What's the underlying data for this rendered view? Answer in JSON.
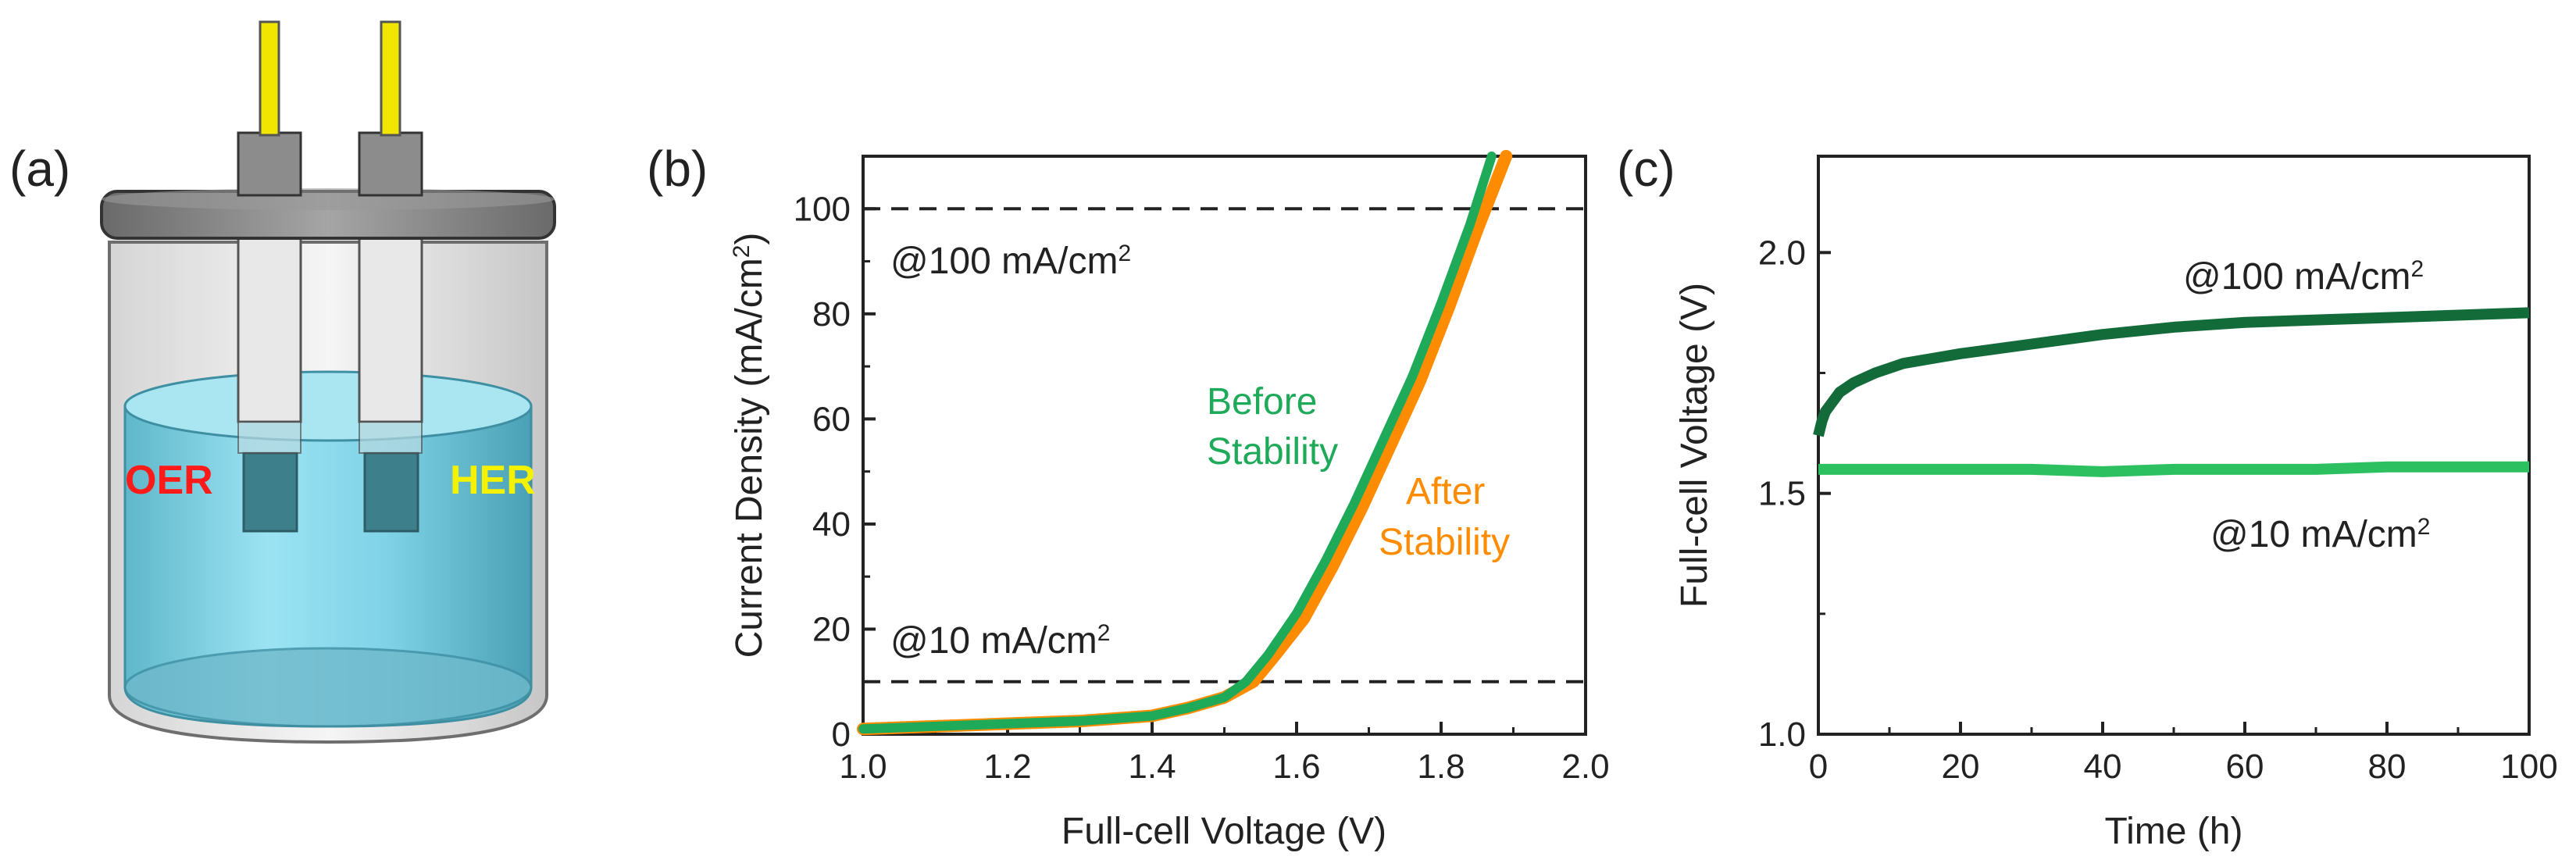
{
  "panel_labels": {
    "a": "(a)",
    "b": "(b)",
    "c": "(c)"
  },
  "schematic": {
    "oer_label": "OER",
    "her_label": "HER",
    "oer_color": "#ff1a1a",
    "her_color": "#f5f200"
  },
  "colors": {
    "before": "#1faa5a",
    "after": "#ff8c00",
    "dark_green": "#146b3a",
    "light_green": "#2cc060",
    "ref_line": "#222222"
  },
  "chart_data": [
    {
      "type": "line",
      "id": "b",
      "title": "",
      "xlabel": "Full-cell Voltage (V)",
      "ylabel_main": "Current Density (mA/cm",
      "ylabel_sup": "2",
      "ylabel_end": ")",
      "xlim": [
        1.0,
        2.0
      ],
      "ylim": [
        0,
        110
      ],
      "xticks": [
        1.0,
        1.2,
        1.4,
        1.6,
        1.8,
        2.0
      ],
      "xtick_labels": [
        "1.0",
        "1.2",
        "1.4",
        "1.6",
        "1.8",
        "2.0"
      ],
      "yticks": [
        0,
        20,
        40,
        60,
        80,
        100
      ],
      "ytick_labels": [
        "0",
        "20",
        "40",
        "60",
        "80",
        "100"
      ],
      "series": [
        {
          "name": "Before Stability",
          "label_line1": "Before",
          "label_line2": "Stability",
          "x": [
            1.0,
            1.1,
            1.2,
            1.3,
            1.4,
            1.45,
            1.5,
            1.53,
            1.56,
            1.6,
            1.64,
            1.68,
            1.72,
            1.76,
            1.8,
            1.84,
            1.87
          ],
          "values": [
            1,
            1.5,
            2,
            2.5,
            3.5,
            5,
            7,
            10,
            15,
            23,
            33,
            44,
            56,
            68,
            82,
            97,
            110
          ]
        },
        {
          "name": "After Stability",
          "label_line1": "After",
          "label_line2": "Stability",
          "x": [
            1.0,
            1.1,
            1.2,
            1.3,
            1.4,
            1.45,
            1.5,
            1.54,
            1.57,
            1.61,
            1.65,
            1.69,
            1.73,
            1.77,
            1.81,
            1.85,
            1.89
          ],
          "values": [
            1,
            1.5,
            2,
            2.5,
            3.5,
            5,
            7,
            10,
            15,
            22,
            32,
            43,
            55,
            67,
            81,
            96,
            110
          ]
        }
      ],
      "reference_lines": [
        {
          "y": 100,
          "label_main": "@100 mA/cm",
          "label_sup": "2"
        },
        {
          "y": 10,
          "label_main": "@10 mA/cm",
          "label_sup": "2"
        }
      ]
    },
    {
      "type": "line",
      "id": "c",
      "title": "",
      "xlabel": "Time (h)",
      "ylabel": "Full-cell Voltage (V)",
      "xlim": [
        0,
        100
      ],
      "ylim": [
        1.0,
        2.2
      ],
      "xticks": [
        0,
        20,
        40,
        60,
        80,
        100
      ],
      "xtick_labels": [
        "0",
        "20",
        "40",
        "60",
        "80",
        "100"
      ],
      "yticks": [
        1.0,
        1.5,
        2.0
      ],
      "ytick_labels": [
        "1.0",
        "1.5",
        "2.0"
      ],
      "series": [
        {
          "name": "@100 mA/cm2",
          "label_main": "@100 mA/cm",
          "label_sup": "2",
          "x": [
            0,
            0.5,
            1,
            2,
            3,
            5,
            8,
            12,
            16,
            20,
            30,
            40,
            50,
            60,
            70,
            80,
            90,
            100
          ],
          "values": [
            1.62,
            1.65,
            1.67,
            1.69,
            1.71,
            1.73,
            1.75,
            1.77,
            1.78,
            1.79,
            1.81,
            1.83,
            1.845,
            1.855,
            1.86,
            1.865,
            1.87,
            1.875
          ]
        },
        {
          "name": "@10 mA/cm2",
          "label_main": "@10 mA/cm",
          "label_sup": "2",
          "x": [
            0,
            10,
            20,
            30,
            40,
            50,
            60,
            70,
            80,
            90,
            100
          ],
          "values": [
            1.55,
            1.55,
            1.55,
            1.55,
            1.545,
            1.55,
            1.55,
            1.55,
            1.555,
            1.555,
            1.555
          ]
        }
      ]
    }
  ]
}
